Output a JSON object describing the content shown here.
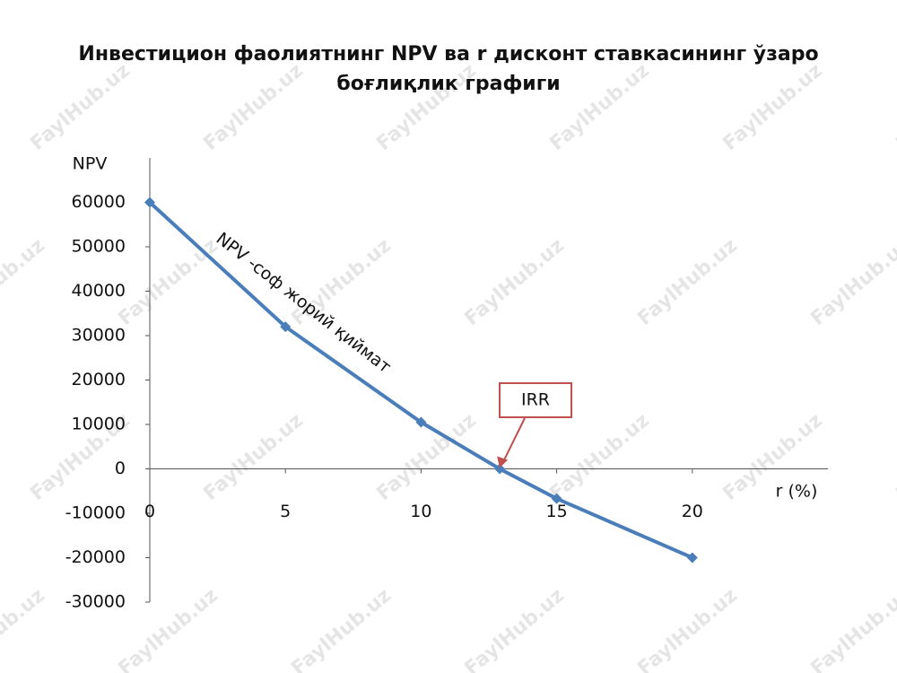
{
  "chart_data": {
    "type": "line",
    "title": "Инвестицион фаолиятнинг NPV ва r дисконт ставкасининг ўзаро боғлиқлик графиги",
    "y_label": "NPV",
    "x_label": "r (%)",
    "x": [
      0,
      5,
      10,
      12.9,
      15,
      20
    ],
    "series": [
      {
        "name": "NPV",
        "color": "#4a7ebb",
        "values": [
          60000,
          32000,
          10500,
          0,
          -6700,
          -20000
        ]
      }
    ],
    "xlim": [
      0,
      25
    ],
    "xticks": [
      0,
      5,
      10,
      15,
      20
    ],
    "ylim": [
      -30000,
      70000
    ],
    "yticks": [
      -30000,
      -20000,
      -10000,
      0,
      10000,
      20000,
      30000,
      40000,
      50000,
      60000
    ],
    "annotations": [
      "NPV -соф жорий қиймат",
      "IRR"
    ],
    "annotation_color": "#c0504d"
  },
  "watermark": "FaylHub.uz"
}
